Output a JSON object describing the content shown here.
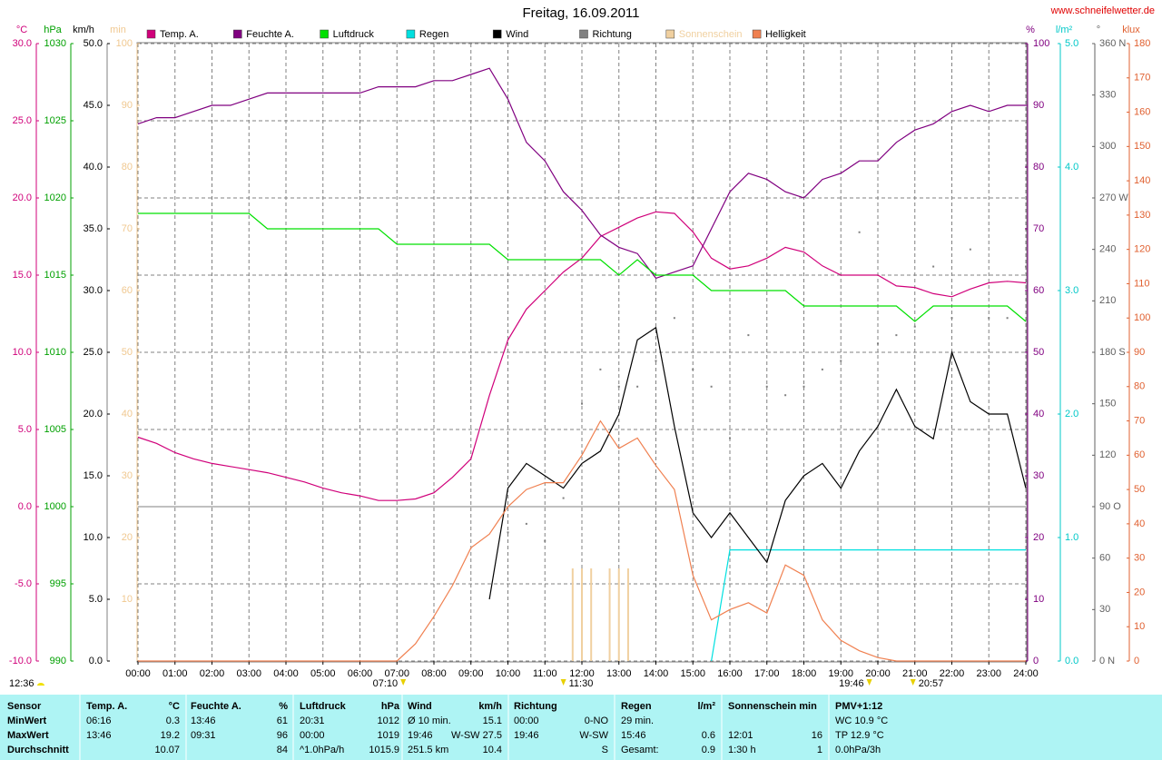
{
  "chart_data": {
    "type": "line",
    "title": "Freitag, 16.09.2011",
    "source": "www.schneifelwetter.de",
    "grid": true,
    "stamp": "12:36",
    "xlim": [
      0,
      24
    ],
    "xticks": [
      {
        "value": 0,
        "label": "00:00"
      },
      {
        "value": 1,
        "label": "01:00"
      },
      {
        "value": 2,
        "label": "02:00"
      },
      {
        "value": 3,
        "label": "03:00"
      },
      {
        "value": 4,
        "label": "04:00"
      },
      {
        "value": 5,
        "label": "05:00"
      },
      {
        "value": 6,
        "label": "06:00"
      },
      {
        "value": 7,
        "label": "07:00"
      },
      {
        "value": 8,
        "label": "08:00"
      },
      {
        "value": 9,
        "label": "09:00"
      },
      {
        "value": 10,
        "label": "10:00"
      },
      {
        "value": 11,
        "label": "11:00"
      },
      {
        "value": 12,
        "label": "12:00"
      },
      {
        "value": 13,
        "label": "13:00"
      },
      {
        "value": 14,
        "label": "14:00"
      },
      {
        "value": 15,
        "label": "15:00"
      },
      {
        "value": 16,
        "label": "16:00"
      },
      {
        "value": 17,
        "label": "17:00"
      },
      {
        "value": 18,
        "label": "18:00"
      },
      {
        "value": 19,
        "label": "19:00"
      },
      {
        "value": 20,
        "label": "20:00"
      },
      {
        "value": 21,
        "label": "21:00"
      },
      {
        "value": 22,
        "label": "22:00"
      },
      {
        "value": 23,
        "label": "23:00"
      },
      {
        "value": 24,
        "label": "24:00"
      }
    ],
    "x": [
      0,
      0.5,
      1,
      1.5,
      2,
      2.5,
      3,
      3.5,
      4,
      4.5,
      5,
      5.5,
      6,
      6.5,
      7,
      7.5,
      8,
      8.5,
      9,
      9.5,
      10,
      10.5,
      11,
      11.5,
      12,
      12.5,
      13,
      13.5,
      14,
      14.5,
      15,
      15.5,
      16,
      16.5,
      17,
      17.5,
      18,
      18.5,
      19,
      19.5,
      20,
      20.5,
      21,
      21.5,
      22,
      22.5,
      23,
      23.5,
      24
    ],
    "axes": [
      {
        "label": "°C",
        "color": "#d0007a",
        "ylim": [
          -10,
          30
        ],
        "yticks": [
          {
            "value": -10,
            "label": "-10.0"
          },
          {
            "value": -5,
            "label": "-5.0"
          },
          {
            "value": 0,
            "label": "0.0"
          },
          {
            "value": 5,
            "label": "5.0"
          },
          {
            "value": 10,
            "label": "10.0"
          },
          {
            "value": 15,
            "label": "15.0"
          },
          {
            "value": 20,
            "label": "20.0"
          },
          {
            "value": 25,
            "label": "25.0"
          },
          {
            "value": 30,
            "label": "30.0"
          }
        ]
      },
      {
        "label": "hPa",
        "color": "#00a000",
        "ylim": [
          990,
          1030
        ],
        "yticks": [
          990,
          995,
          1000,
          1005,
          1010,
          1015,
          1020,
          1025,
          1030
        ]
      },
      {
        "label": "km/h",
        "color": "#000000",
        "ylim": [
          0,
          50
        ],
        "yticks": [
          {
            "value": 0,
            "label": "0.0"
          },
          {
            "value": 5,
            "label": "5.0"
          },
          {
            "value": 10,
            "label": "10.0"
          },
          {
            "value": 15,
            "label": "15.0"
          },
          {
            "value": 20,
            "label": "20.0"
          },
          {
            "value": 25,
            "label": "25.0"
          },
          {
            "value": 30,
            "label": "30.0"
          },
          {
            "value": 35,
            "label": "35.0"
          },
          {
            "value": 40,
            "label": "40.0"
          },
          {
            "value": 45,
            "label": "45.0"
          },
          {
            "value": 50,
            "label": "50.0"
          }
        ]
      },
      {
        "label": "min",
        "color": "#f0c890",
        "ylim": [
          0,
          100
        ],
        "yticks": [
          10,
          20,
          30,
          40,
          50,
          60,
          70,
          80,
          90,
          100
        ]
      },
      {
        "label": "%",
        "color": "#800080",
        "ylim": [
          0,
          100
        ],
        "yticks": [
          0,
          10,
          20,
          30,
          40,
          50,
          60,
          70,
          80,
          90,
          100
        ]
      },
      {
        "label": "l/m²",
        "color": "#00c8c8",
        "ylim": [
          0,
          5
        ],
        "yticks": [
          {
            "value": 0,
            "label": "0.0"
          },
          {
            "value": 1,
            "label": "1.0"
          },
          {
            "value": 2,
            "label": "2.0"
          },
          {
            "value": 3,
            "label": "3.0"
          },
          {
            "value": 4,
            "label": "4.0"
          },
          {
            "value": 5,
            "label": "5.0"
          }
        ]
      },
      {
        "label": "°",
        "color": "#606060",
        "ylim": [
          0,
          360
        ],
        "yticks": [
          {
            "value": 0,
            "label": "0 N"
          },
          30,
          60,
          {
            "value": 90,
            "label": "90 O"
          },
          120,
          150,
          {
            "value": 180,
            "label": "180 S"
          },
          210,
          240,
          {
            "value": 270,
            "label": "270 W"
          },
          300,
          330,
          {
            "value": 360,
            "label": "360 N"
          }
        ]
      },
      {
        "label": "klux",
        "color": "#e06030",
        "ylim": [
          0,
          180
        ],
        "yticks": [
          0,
          10,
          20,
          30,
          40,
          50,
          60,
          70,
          80,
          90,
          100,
          110,
          120,
          130,
          140,
          150,
          160,
          170,
          180
        ]
      }
    ],
    "series": [
      {
        "name": "Temp. A.",
        "color": "#d0007a",
        "axis": 0,
        "values": [
          4.5,
          4.1,
          3.5,
          3.1,
          2.8,
          2.6,
          2.4,
          2.2,
          1.9,
          1.6,
          1.2,
          0.9,
          0.7,
          0.4,
          0.4,
          0.5,
          0.9,
          1.9,
          3.1,
          7.2,
          10.8,
          12.8,
          14.0,
          15.2,
          16.1,
          17.5,
          18.1,
          18.7,
          19.1,
          19.0,
          17.8,
          16.1,
          15.4,
          15.6,
          16.1,
          16.8,
          16.5,
          15.6,
          15.0,
          15.0,
          15.0,
          14.3,
          14.2,
          13.8,
          13.6,
          14.1,
          14.5,
          14.6,
          14.5
        ]
      },
      {
        "name": "Feuchte A.",
        "color": "#800080",
        "axis": 4,
        "values": [
          87,
          88,
          88,
          89,
          90,
          90,
          91,
          92,
          92,
          92,
          92,
          92,
          92,
          93,
          93,
          93,
          94,
          94,
          95,
          96,
          91,
          84,
          81,
          76,
          73,
          69,
          67,
          66,
          62,
          63,
          64,
          70,
          76,
          79,
          78,
          76,
          75,
          78,
          79,
          81,
          81,
          84,
          86,
          87,
          89,
          90,
          89,
          90,
          90
        ]
      },
      {
        "name": "Luftdruck",
        "color": "#00e000",
        "axis": 1,
        "values": [
          1019,
          1019,
          1019,
          1019,
          1019,
          1019,
          1019,
          1018,
          1018,
          1018,
          1018,
          1018,
          1018,
          1018,
          1017,
          1017,
          1017,
          1017,
          1017,
          1017,
          1016,
          1016,
          1016,
          1016,
          1016,
          1016,
          1015,
          1016,
          1015,
          1015,
          1015,
          1014,
          1014,
          1014,
          1014,
          1014,
          1013,
          1013,
          1013,
          1013,
          1013,
          1013,
          1012,
          1013,
          1013,
          1013,
          1013,
          1013,
          1012
        ]
      },
      {
        "name": "Regen",
        "color": "#00e0e0",
        "axis": 5,
        "values": [
          null,
          null,
          null,
          null,
          null,
          null,
          null,
          null,
          null,
          null,
          null,
          null,
          null,
          null,
          null,
          null,
          null,
          null,
          null,
          null,
          null,
          null,
          null,
          null,
          null,
          null,
          null,
          null,
          null,
          null,
          null,
          0,
          0.9,
          0.9,
          0.9,
          0.9,
          0.9,
          0.9,
          0.9,
          0.9,
          0.9,
          0.9,
          0.9,
          0.9,
          0.9,
          0.9,
          0.9,
          0.9,
          0.9
        ]
      },
      {
        "name": "Wind",
        "color": "#000000",
        "axis": 2,
        "values": [
          null,
          null,
          null,
          null,
          null,
          null,
          null,
          null,
          null,
          null,
          null,
          null,
          null,
          null,
          null,
          null,
          null,
          null,
          null,
          5,
          14,
          16,
          15,
          14,
          16,
          17,
          20,
          26,
          27,
          19,
          12,
          10,
          12,
          10,
          8,
          13,
          15,
          16,
          14,
          17,
          19,
          22,
          19,
          18,
          25,
          21,
          20,
          20,
          14
        ]
      },
      {
        "name": "Richtung",
        "color": "#808080",
        "axis": 6,
        "type": "scatter",
        "values": [
          null,
          null,
          null,
          null,
          null,
          null,
          null,
          null,
          null,
          null,
          null,
          null,
          null,
          null,
          null,
          null,
          null,
          null,
          null,
          null,
          75,
          80,
          70,
          95,
          150,
          170,
          160,
          160,
          175,
          200,
          170,
          160,
          130,
          190,
          160,
          155,
          160,
          170,
          175,
          250,
          185,
          190,
          195,
          230,
          200,
          240,
          200,
          200,
          230
        ]
      },
      {
        "name": "Sonnenschein",
        "color": "#f0d0a0",
        "axis": 3,
        "type": "bar",
        "x": [
          11.75,
          12.0,
          12.25,
          12.75,
          13.0,
          13.25
        ],
        "values": [
          15,
          15,
          15,
          15,
          15,
          15
        ]
      },
      {
        "name": "Helligkeit",
        "color": "#f08050",
        "axis": 7,
        "values": [
          0,
          0,
          0,
          0,
          0,
          0,
          0,
          0,
          0,
          0,
          0,
          0,
          0,
          0,
          0,
          5,
          13,
          22,
          33,
          37,
          45,
          50,
          52,
          52,
          60,
          70,
          62,
          65,
          57,
          50,
          25,
          12,
          15,
          17,
          14,
          28,
          25,
          12,
          6,
          3,
          1,
          0,
          0,
          0,
          0,
          0,
          0,
          0,
          0
        ]
      }
    ],
    "annotations": [
      {
        "x": 7.17,
        "label": "07:10"
      },
      {
        "x": 11.5,
        "label": "11:30"
      },
      {
        "x": 19.77,
        "label": "19:46"
      },
      {
        "x": 20.95,
        "label": "20:57"
      }
    ]
  },
  "table": {
    "header": {
      "label": "Sensor",
      "groups": [
        [
          "Temp. A.",
          "°C"
        ],
        [
          "Feuchte A.",
          "%"
        ],
        [
          "Luftdruck",
          "hPa"
        ],
        [
          "Wind",
          "km/h"
        ],
        [
          "Richtung"
        ],
        [
          "Regen",
          "l/m²"
        ],
        [
          "Sonnenschein min"
        ],
        [
          "PMV+1:12"
        ]
      ]
    },
    "rows": [
      {
        "label": "MinWert",
        "groups": [
          [
            "06:16",
            "0.3"
          ],
          [
            "13:46",
            "61"
          ],
          [
            "20:31",
            "1012"
          ],
          [
            "Ø 10 min.",
            "15.1"
          ],
          [
            "00:00",
            "0-NO"
          ],
          [
            "29 min.",
            null
          ],
          [
            null,
            null
          ],
          [
            "WC 10.9 °C"
          ]
        ]
      },
      {
        "label": "MaxWert",
        "groups": [
          [
            "13:46",
            "19.2"
          ],
          [
            "09:31",
            "96"
          ],
          [
            "00:00",
            "1019"
          ],
          [
            "19:46",
            "W-SW 27.5"
          ],
          [
            "19:46",
            "W-SW"
          ],
          [
            "15:46",
            "0.6"
          ],
          [
            "12:01",
            "16"
          ],
          [
            "TP 12.9 °C"
          ]
        ]
      },
      {
        "label": "Durchschnitt",
        "groups": [
          [
            null,
            "10.07"
          ],
          [
            null,
            "84"
          ],
          [
            "^1.0hPa/h",
            "1015.9"
          ],
          [
            "251.5 km",
            "10.4"
          ],
          [
            null,
            "S"
          ],
          [
            "Gesamt:",
            "0.9"
          ],
          [
            "1:30 h",
            "1"
          ],
          [
            "0.0hPa/3h"
          ]
        ]
      }
    ]
  }
}
